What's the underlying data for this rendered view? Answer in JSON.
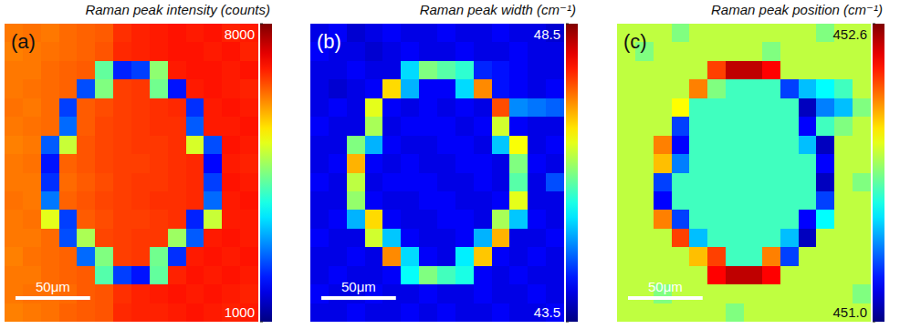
{
  "chart_data": [
    {
      "type": "heatmap",
      "title": "Raman peak intensity (counts)",
      "annotations": [
        "(a)"
      ],
      "scale_bar": {
        "label": "50μm",
        "value": 50
      },
      "xlim": [
        0,
        170
      ],
      "ylim": [
        0,
        200
      ],
      "tick_labels": false,
      "colorbar": {
        "range": [
          1000,
          8000
        ],
        "ticks": [
          1000,
          8000
        ]
      },
      "cells": [
        [
          6300,
          6350,
          6300,
          6400,
          6450,
          6500,
          6800,
          6900,
          6950,
          7000,
          6950,
          7000,
          6900,
          6950
        ],
        [
          6250,
          6300,
          6350,
          6400,
          6450,
          6550,
          6850,
          6900,
          6950,
          7000,
          7000,
          6950,
          7000,
          6900
        ],
        [
          6300,
          6300,
          6400,
          6450,
          6500,
          4300,
          2100,
          2300,
          4600,
          6950,
          7000,
          7000,
          6950,
          7000
        ],
        [
          6300,
          6350,
          6400,
          6450,
          2400,
          4500,
          6700,
          6750,
          4400,
          2000,
          6950,
          7000,
          6950,
          6900
        ],
        [
          6350,
          6300,
          6400,
          2300,
          6500,
          6600,
          6700,
          6750,
          6800,
          6850,
          2200,
          6950,
          7000,
          6950
        ],
        [
          6300,
          6350,
          6400,
          2600,
          6500,
          6650,
          6700,
          6750,
          6800,
          6800,
          2500,
          6950,
          6950,
          7000
        ],
        [
          6250,
          6300,
          2500,
          5000,
          6550,
          6650,
          6700,
          6750,
          6750,
          6800,
          5100,
          2400,
          7000,
          6950
        ],
        [
          6300,
          6350,
          2000,
          6450,
          6550,
          6650,
          6700,
          6700,
          6750,
          6800,
          6850,
          1900,
          6950,
          6900
        ],
        [
          6300,
          6300,
          2200,
          6400,
          6500,
          6600,
          6700,
          6750,
          6750,
          6800,
          6850,
          2300,
          7000,
          6950
        ],
        [
          6350,
          6300,
          2700,
          6450,
          6550,
          6650,
          6700,
          6750,
          6800,
          6800,
          6850,
          2600,
          6950,
          7000
        ],
        [
          6300,
          6350,
          5200,
          2300,
          6500,
          6600,
          6700,
          6700,
          6750,
          6800,
          2100,
          5000,
          6950,
          6950
        ],
        [
          6300,
          6300,
          6400,
          2400,
          4800,
          6650,
          6700,
          6750,
          6750,
          4700,
          2500,
          6950,
          7000,
          6950
        ],
        [
          6250,
          6350,
          6400,
          6450,
          2600,
          4500,
          6700,
          6750,
          4400,
          2200,
          6950,
          7000,
          6950,
          7000
        ],
        [
          6300,
          6300,
          6400,
          6450,
          6500,
          4200,
          2300,
          2000,
          4300,
          6900,
          7000,
          6950,
          7000,
          6950
        ],
        [
          6300,
          6350,
          6350,
          6400,
          6500,
          6550,
          6800,
          6900,
          6950,
          7000,
          6950,
          7000,
          6950,
          6900
        ],
        [
          6250,
          6300,
          6350,
          6450,
          6500,
          6550,
          6850,
          6900,
          6900,
          6950,
          7000,
          6950,
          6900,
          6950
        ]
      ]
    },
    {
      "type": "heatmap",
      "title": "Raman peak width (cm⁻¹)",
      "annotations": [
        "(b)"
      ],
      "scale_bar": {
        "label": "50μm",
        "value": 50
      },
      "xlim": [
        0,
        170
      ],
      "ylim": [
        0,
        200
      ],
      "tick_labels": false,
      "colorbar": {
        "range": [
          43.5,
          48.5
        ],
        "ticks": [
          43.5,
          48.5
        ]
      },
      "cells": [
        [
          44.0,
          44.1,
          43.9,
          44.0,
          44.1,
          44.0,
          44.0,
          44.1,
          44.0,
          44.0,
          44.1,
          44.0,
          44.0,
          43.9
        ],
        [
          44.1,
          44.0,
          44.0,
          43.9,
          44.0,
          44.1,
          44.0,
          44.0,
          44.1,
          44.0,
          44.0,
          44.1,
          44.0,
          44.0
        ],
        [
          44.0,
          44.0,
          44.1,
          44.0,
          44.0,
          45.2,
          46.0,
          45.8,
          45.6,
          44.3,
          44.2,
          44.1,
          44.0,
          44.0
        ],
        [
          44.0,
          43.9,
          44.0,
          44.1,
          46.8,
          45.0,
          44.1,
          44.1,
          45.2,
          47.2,
          44.2,
          44.1,
          44.0,
          44.1
        ],
        [
          44.0,
          44.1,
          44.0,
          46.5,
          44.1,
          44.0,
          44.1,
          44.0,
          44.1,
          44.0,
          47.5,
          44.8,
          44.7,
          44.6
        ],
        [
          44.1,
          44.0,
          44.0,
          46.2,
          44.0,
          44.1,
          44.1,
          44.1,
          44.0,
          44.1,
          46.4,
          44.1,
          44.0,
          44.0
        ],
        [
          44.0,
          44.0,
          46.0,
          45.0,
          44.1,
          44.0,
          44.0,
          44.1,
          44.1,
          44.0,
          45.1,
          46.6,
          44.0,
          44.1
        ],
        [
          44.0,
          44.1,
          47.0,
          44.1,
          44.0,
          44.1,
          44.0,
          44.0,
          44.1,
          44.1,
          44.0,
          46.0,
          44.1,
          44.0
        ],
        [
          44.1,
          44.0,
          46.3,
          44.0,
          44.1,
          44.1,
          44.1,
          44.0,
          44.0,
          44.1,
          44.0,
          45.8,
          44.0,
          44.5
        ],
        [
          44.0,
          44.0,
          46.1,
          44.1,
          44.0,
          44.0,
          44.1,
          44.1,
          44.0,
          44.0,
          44.1,
          46.5,
          44.0,
          44.0
        ],
        [
          44.0,
          44.1,
          45.0,
          46.8,
          44.1,
          44.0,
          44.0,
          44.1,
          44.1,
          44.0,
          46.2,
          45.1,
          44.1,
          44.0
        ],
        [
          44.1,
          44.0,
          44.0,
          46.4,
          45.1,
          44.1,
          44.0,
          44.0,
          44.1,
          45.0,
          47.0,
          44.0,
          44.0,
          44.1
        ],
        [
          44.0,
          44.0,
          44.1,
          44.0,
          47.2,
          45.2,
          44.1,
          44.0,
          45.3,
          46.9,
          44.1,
          44.0,
          44.1,
          44.0
        ],
        [
          44.0,
          44.1,
          44.0,
          44.0,
          44.1,
          45.4,
          46.0,
          45.7,
          45.5,
          44.1,
          44.0,
          44.1,
          44.0,
          44.0
        ],
        [
          44.1,
          44.0,
          44.0,
          44.1,
          44.0,
          44.0,
          44.1,
          44.0,
          44.0,
          44.1,
          44.0,
          44.0,
          44.1,
          44.0
        ],
        [
          44.0,
          44.0,
          44.1,
          44.0,
          44.0,
          44.1,
          44.0,
          44.1,
          44.0,
          44.0,
          44.1,
          44.0,
          44.0,
          44.1
        ]
      ]
    },
    {
      "type": "heatmap",
      "title": "Raman peak position (cm⁻¹)",
      "annotations": [
        "(c)"
      ],
      "scale_bar": {
        "label": "50μm",
        "value": 50
      },
      "xlim": [
        0,
        170
      ],
      "ylim": [
        0,
        200
      ],
      "tick_labels": false,
      "colorbar": {
        "range": [
          451,
          452.6
        ],
        "ticks": [
          {
            "value": 451,
            "label": "451.0"
          },
          452.6
        ]
      },
      "cells": [
        [
          451.9,
          451.9,
          451.9,
          451.8,
          451.9,
          451.9,
          451.9,
          451.9,
          451.9,
          451.9,
          451.9,
          451.8,
          451.9,
          451.9
        ],
        [
          451.9,
          451.8,
          451.9,
          451.9,
          451.9,
          451.9,
          451.9,
          451.9,
          451.8,
          451.9,
          451.9,
          451.9,
          451.9,
          451.9
        ],
        [
          451.9,
          451.9,
          451.9,
          451.9,
          451.9,
          452.3,
          452.5,
          452.5,
          452.4,
          451.9,
          451.9,
          451.9,
          451.9,
          451.9
        ],
        [
          451.9,
          451.9,
          451.9,
          451.9,
          452.2,
          451.8,
          451.7,
          451.7,
          451.7,
          451.3,
          451.5,
          451.6,
          451.7,
          451.9
        ],
        [
          451.9,
          451.9,
          451.9,
          452.0,
          451.7,
          451.7,
          451.7,
          451.7,
          451.7,
          451.7,
          451.1,
          451.4,
          451.5,
          451.8
        ],
        [
          451.9,
          451.9,
          451.9,
          451.3,
          451.7,
          451.7,
          451.7,
          451.7,
          451.7,
          451.7,
          451.2,
          451.7,
          451.8,
          451.9
        ],
        [
          451.9,
          451.9,
          452.2,
          451.2,
          451.7,
          451.7,
          451.7,
          451.7,
          451.7,
          451.7,
          451.5,
          451.1,
          451.9,
          451.9
        ],
        [
          451.9,
          451.9,
          452.1,
          451.4,
          451.7,
          451.7,
          451.7,
          451.7,
          451.7,
          451.7,
          451.7,
          451.2,
          451.9,
          451.9
        ],
        [
          451.9,
          451.9,
          451.3,
          451.7,
          451.7,
          451.7,
          451.7,
          451.7,
          451.7,
          451.7,
          451.7,
          451.1,
          451.9,
          451.8
        ],
        [
          451.9,
          451.9,
          451.2,
          451.7,
          451.7,
          451.7,
          451.7,
          451.7,
          451.7,
          451.7,
          451.7,
          451.3,
          451.9,
          451.9
        ],
        [
          451.9,
          451.9,
          452.2,
          451.3,
          451.7,
          451.7,
          451.7,
          451.7,
          451.7,
          451.7,
          451.2,
          451.6,
          451.9,
          451.9
        ],
        [
          451.9,
          451.9,
          451.9,
          452.3,
          451.5,
          451.7,
          451.7,
          451.7,
          451.7,
          451.5,
          451.1,
          451.9,
          451.9,
          451.9
        ],
        [
          451.9,
          451.9,
          451.9,
          451.9,
          452.1,
          452.3,
          451.7,
          451.7,
          452.2,
          451.3,
          451.9,
          451.9,
          451.9,
          451.9
        ],
        [
          451.9,
          451.9,
          451.9,
          451.9,
          451.9,
          452.4,
          452.5,
          452.5,
          452.4,
          451.9,
          451.9,
          451.9,
          451.9,
          451.9
        ],
        [
          451.9,
          451.9,
          451.8,
          451.9,
          451.9,
          451.9,
          451.9,
          451.9,
          451.9,
          451.9,
          451.9,
          451.9,
          451.9,
          451.8
        ],
        [
          451.9,
          451.9,
          451.9,
          451.9,
          451.9,
          451.9,
          451.8,
          451.9,
          451.9,
          451.9,
          451.9,
          451.9,
          451.9,
          451.9
        ]
      ]
    }
  ]
}
